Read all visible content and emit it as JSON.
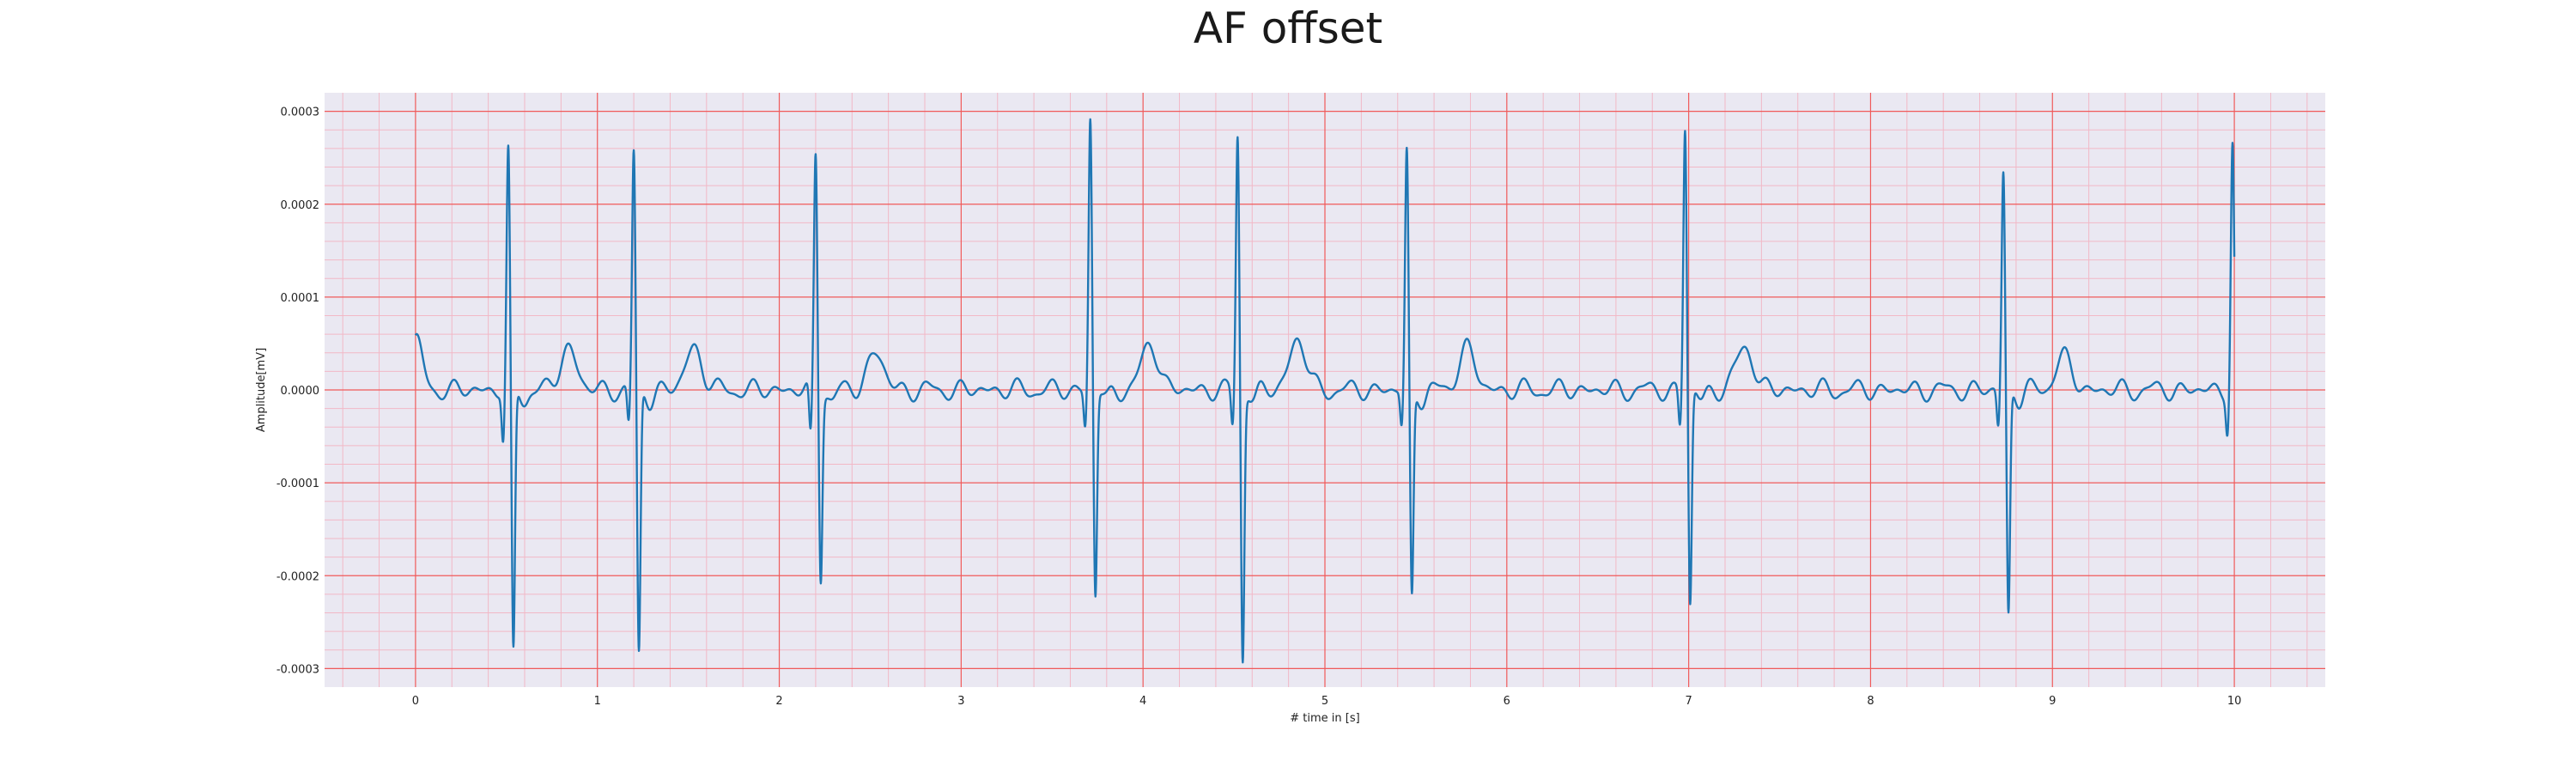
{
  "chart_data": {
    "type": "line",
    "title": "AF offset",
    "xlabel": "# time in [s]",
    "ylabel": "Amplitude[mV]",
    "xlim": [
      -0.5,
      10.5
    ],
    "ylim": [
      -0.00032,
      0.00032
    ],
    "x_ticks": [
      0,
      1,
      2,
      3,
      4,
      5,
      6,
      7,
      8,
      9,
      10
    ],
    "x_tick_labels": [
      "0",
      "1",
      "2",
      "3",
      "4",
      "5",
      "6",
      "7",
      "8",
      "9",
      "10"
    ],
    "y_ticks": [
      0.0003,
      0.0002,
      0.0001,
      0.0,
      -0.0001,
      -0.0002,
      -0.0003
    ],
    "y_tick_labels": [
      "0.0003",
      "0.0002",
      "0.0001",
      "0.0000",
      "-0.0001",
      "-0.0002",
      "-0.0003"
    ],
    "grid": true,
    "minor_grid": true,
    "legend": "none",
    "colors": {
      "line": "#1f77b4",
      "background": "#eae8f2",
      "major_grid": "#f05a5a",
      "minor_grid": "#f2b8c6"
    },
    "series": [
      {
        "beats": [
          {
            "t": 0.51,
            "r": 0.000255,
            "s": -0.000288,
            "q": -5.5e-05,
            "t_wave": 4.5e-05
          },
          {
            "t": 1.2,
            "r": 0.000255,
            "s": -0.000288,
            "q": -4e-05,
            "t_wave": 4.5e-05
          },
          {
            "t": 2.2,
            "r": 0.000255,
            "s": -0.0002,
            "q": -5.5e-05,
            "t_wave": 4e-05
          },
          {
            "t": 3.71,
            "r": 0.000293,
            "s": -0.000222,
            "q": -4e-05,
            "t_wave": 5e-05
          },
          {
            "t": 4.52,
            "r": 0.000277,
            "s": -0.00029,
            "q": -4e-05,
            "t_wave": 5.5e-05
          },
          {
            "t": 5.45,
            "r": 0.000255,
            "s": -0.000225,
            "q": -4e-05,
            "t_wave": 4.5e-05
          },
          {
            "t": 6.98,
            "r": 0.000284,
            "s": -0.000233,
            "q": -4e-05,
            "t_wave": 4.8e-05
          },
          {
            "t": 8.73,
            "r": 0.000235,
            "s": -0.000245,
            "q": -4e-05,
            "t_wave": 3.5e-05
          },
          {
            "t": 9.99,
            "r": 0.000265,
            "s": -4e-05,
            "q": -4e-05,
            "t_wave": 0.0
          }
        ],
        "start": {
          "t": 0.0,
          "v": 5.3e-05
        },
        "end": {
          "t": 10.0,
          "v": 0.000265
        },
        "baseline_noise_amplitude": 1.2e-05
      }
    ]
  }
}
